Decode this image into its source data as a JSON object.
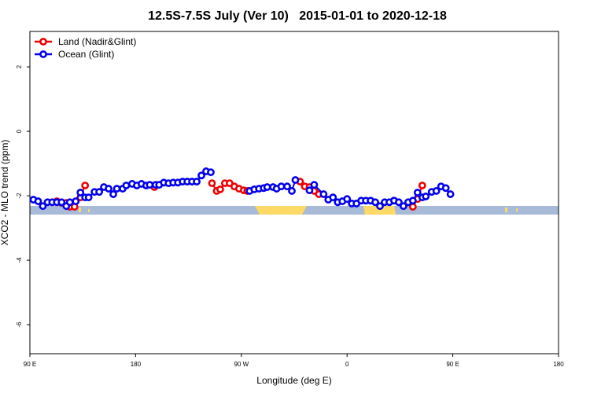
{
  "chart_data": {
    "type": "line",
    "title": "12.5S-7.5S July (Ver 10)   2015-01-01 to 2020-12-18",
    "x_label": "Longitude (deg E)",
    "y_label": "XCO2 - MLO trend (ppm)",
    "xlim": [
      90,
      540
    ],
    "ylim": [
      -6.9,
      3.1
    ],
    "xticks": [
      {
        "value": 90,
        "label": "90 E"
      },
      180,
      {
        "value": 270,
        "label": "90 W"
      },
      {
        "value": 360,
        "label": "0"
      },
      {
        "value": 450,
        "label": "90 E"
      },
      {
        "value": 540,
        "label": "180"
      }
    ],
    "yticks": [
      -6,
      -4,
      -2,
      0,
      2
    ],
    "legend": "top-left",
    "series": [
      {
        "name": "Land (Nadir&Glint)",
        "color": "#ee0000",
        "x": [
          113,
          117,
          121,
          124,
          128,
          133,
          137,
          null,
          196,
          null,
          245,
          249,
          252,
          256,
          260,
          264,
          268,
          272,
          275,
          null,
          320,
          324,
          328,
          332,
          336,
          null,
          400,
          null,
          416,
          420,
          424
        ],
        "values": [
          -2.17,
          -2.22,
          -2.22,
          -2.34,
          -2.34,
          -2.05,
          -1.68,
          null,
          -1.73,
          null,
          -1.61,
          -1.85,
          -1.8,
          -1.61,
          -1.61,
          -1.71,
          -1.78,
          -1.83,
          -1.85,
          null,
          -1.56,
          -1.71,
          -1.73,
          -1.85,
          -1.95,
          null,
          -2.15,
          null,
          -2.34,
          -2.1,
          -1.68
        ]
      },
      {
        "name": "Ocean (Glint)",
        "color": "#0000ee",
        "x": [
          93,
          97,
          101,
          105,
          109,
          113,
          117,
          121,
          124,
          129,
          133,
          137,
          140,
          145,
          149,
          153,
          157,
          161,
          164,
          169,
          172,
          177,
          181,
          185,
          189,
          192,
          197,
          200,
          204,
          208,
          212,
          216,
          220,
          224,
          228,
          232,
          236,
          240,
          244,
          null,
          277,
          281,
          285,
          289,
          292,
          297,
          300,
          304,
          309,
          313,
          316,
          null,
          328,
          332,
          340,
          344,
          348,
          352,
          356,
          360,
          364,
          368,
          372,
          376,
          380,
          384,
          388,
          392,
          396,
          400,
          404,
          408,
          412,
          416,
          420,
          424,
          427,
          432,
          436,
          440,
          444,
          448
        ],
        "values": [
          -2.12,
          -2.17,
          -2.32,
          -2.2,
          -2.2,
          -2.2,
          -2.2,
          -2.32,
          -2.2,
          -2.17,
          -1.9,
          -2.05,
          -2.05,
          -1.88,
          -1.88,
          -1.73,
          -1.78,
          -1.95,
          -1.78,
          -1.78,
          -1.68,
          -1.63,
          -1.68,
          -1.63,
          -1.68,
          -1.66,
          -1.66,
          -1.66,
          -1.59,
          -1.61,
          -1.59,
          -1.59,
          -1.56,
          -1.56,
          -1.56,
          -1.56,
          -1.37,
          -1.24,
          -1.27,
          null,
          -1.85,
          -1.8,
          -1.78,
          -1.76,
          -1.73,
          -1.73,
          -1.78,
          -1.71,
          -1.71,
          -1.85,
          -1.51,
          null,
          -1.83,
          -1.66,
          -1.95,
          -2.12,
          -2.05,
          -2.2,
          -2.17,
          -2.1,
          -2.24,
          -2.24,
          -2.15,
          -2.15,
          -2.15,
          -2.2,
          -2.32,
          -2.2,
          -2.2,
          -2.15,
          -2.2,
          -2.32,
          -2.2,
          -2.15,
          -1.9,
          -2.05,
          -2.02,
          -1.88,
          -1.85,
          -1.71,
          -1.76,
          -1.95
        ]
      }
    ]
  }
}
